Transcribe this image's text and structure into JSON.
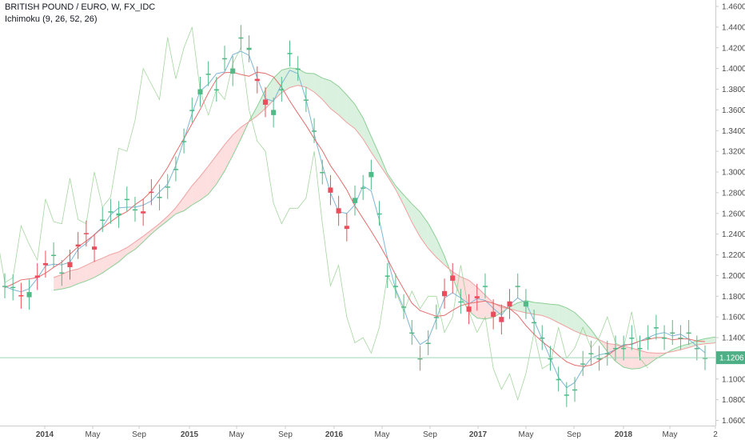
{
  "chart_data": {
    "type": "candlestick",
    "title": "BRITISH POUND / EURO, W, FX_IDC",
    "indicator": "Ichimoku (9, 26, 52, 26)",
    "last_price": "1.1206",
    "ylim": [
      1.055,
      1.46
    ],
    "y_ticks": [
      "1.0600",
      "1.0800",
      "1.1000",
      "1.1200",
      "1.1400",
      "1.1600",
      "1.1800",
      "1.2000",
      "1.2200",
      "1.2400",
      "1.2600",
      "1.2800",
      "1.3000",
      "1.3200",
      "1.3400",
      "1.3600",
      "1.3800",
      "1.4000",
      "1.4200",
      "1.4400",
      "1.4600"
    ],
    "x_ticks": [
      "2014",
      "May",
      "Sep",
      "2015",
      "May",
      "Sep",
      "2016",
      "May",
      "Sep",
      "2017",
      "May",
      "Sep",
      "2018",
      "May",
      "2"
    ],
    "colors": {
      "up": "#53b987",
      "down": "#eb4d5c",
      "cloud_up": "#d7f0dc",
      "cloud_down": "#fddbdb",
      "tenkan": "#7fb5d6",
      "kijun": "#e46d6d",
      "chikou": "#7dc475",
      "last_line": "#9fd8b9",
      "last_bg": "#4caf85"
    },
    "close_series": [
      [
        1.19,
        1.19
      ],
      [
        1.188,
        1.189
      ],
      [
        1.181,
        1.18
      ],
      [
        1.179,
        1.184
      ],
      [
        1.2,
        1.198
      ],
      [
        1.212,
        1.21
      ],
      [
        1.22,
        1.22
      ],
      [
        1.202,
        1.203
      ],
      [
        1.213,
        1.208
      ],
      [
        1.23,
        1.228
      ],
      [
        1.241,
        1.24
      ],
      [
        1.228,
        1.225
      ],
      [
        1.254,
        1.254
      ],
      [
        1.262,
        1.262
      ],
      [
        1.258,
        1.26
      ],
      [
        1.274,
        1.274
      ],
      [
        1.264,
        1.264
      ],
      [
        1.262,
        1.26
      ],
      [
        1.281,
        1.28
      ],
      [
        1.275,
        1.276
      ],
      [
        1.286,
        1.286
      ],
      [
        1.303,
        1.303
      ],
      [
        1.33,
        1.33
      ],
      [
        1.36,
        1.36
      ],
      [
        1.375,
        1.38
      ],
      [
        1.395,
        1.395
      ],
      [
        1.38,
        1.38
      ],
      [
        1.41,
        1.41
      ],
      [
        1.395,
        1.4
      ],
      [
        1.43,
        1.43
      ],
      [
        1.418,
        1.42
      ],
      [
        1.39,
        1.388
      ],
      [
        1.37,
        1.365
      ],
      [
        1.355,
        1.36
      ],
      [
        1.38,
        1.38
      ],
      [
        1.414,
        1.415
      ],
      [
        1.4,
        1.4
      ],
      [
        1.37,
        1.37
      ],
      [
        1.34,
        1.34
      ],
      [
        1.3,
        1.3
      ],
      [
        1.285,
        1.28
      ],
      [
        1.265,
        1.26
      ],
      [
        1.248,
        1.245
      ],
      [
        1.27,
        1.275
      ],
      [
        1.285,
        1.285
      ],
      [
        1.295,
        1.3
      ],
      [
        1.26,
        1.26
      ],
      [
        1.2,
        1.2
      ],
      [
        1.19,
        1.19
      ],
      [
        1.17,
        1.17
      ],
      [
        1.145,
        1.145
      ],
      [
        1.12,
        1.12
      ],
      [
        1.135,
        1.135
      ],
      [
        1.16,
        1.16
      ],
      [
        1.185,
        1.18
      ],
      [
        1.2,
        1.195
      ],
      [
        1.175,
        1.175
      ],
      [
        1.17,
        1.165
      ],
      [
        1.18,
        1.178
      ],
      [
        1.19,
        1.19
      ],
      [
        1.165,
        1.16
      ],
      [
        1.16,
        1.155
      ],
      [
        1.175,
        1.17
      ],
      [
        1.19,
        1.19
      ],
      [
        1.17,
        1.175
      ],
      [
        1.155,
        1.155
      ],
      [
        1.14,
        1.14
      ],
      [
        1.12,
        1.12
      ],
      [
        1.1,
        1.1
      ],
      [
        1.085,
        1.085
      ],
      [
        1.09,
        1.09
      ],
      [
        1.115,
        1.115
      ],
      [
        1.125,
        1.125
      ],
      [
        1.12,
        1.12
      ],
      [
        1.125,
        1.125
      ],
      [
        1.13,
        1.13
      ],
      [
        1.13,
        1.13
      ],
      [
        1.14,
        1.14
      ],
      [
        1.13,
        1.13
      ],
      [
        1.14,
        1.14
      ],
      [
        1.15,
        1.15
      ],
      [
        1.14,
        1.14
      ],
      [
        1.145,
        1.145
      ],
      [
        1.14,
        1.14
      ],
      [
        1.145,
        1.145
      ],
      [
        1.13,
        1.13
      ],
      [
        1.1206,
        1.1206
      ]
    ]
  }
}
